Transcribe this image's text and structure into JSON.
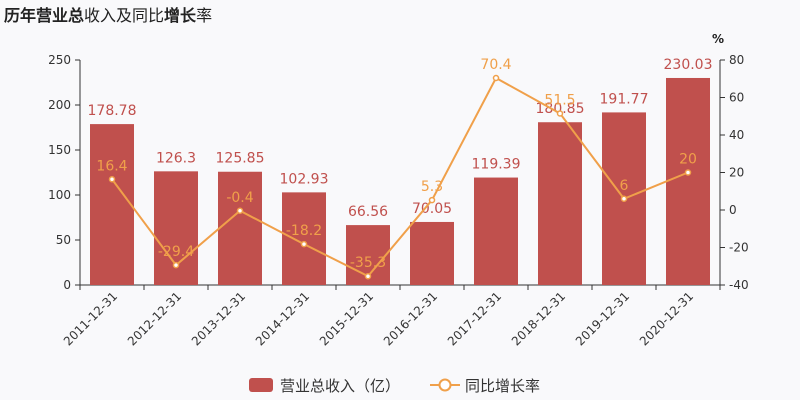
{
  "chart_data": {
    "type": "bar",
    "title_parts": [
      {
        "text": "历年",
        "bold": true
      },
      {
        "text": "营业总",
        "bold": true
      },
      {
        "text": "收入及同比",
        "bold": false
      },
      {
        "text": "增长",
        "bold": true
      },
      {
        "text": "率",
        "bold": false
      }
    ],
    "categories": [
      "2011-12-31",
      "2012-12-31",
      "2013-12-31",
      "2014-12-31",
      "2015-12-31",
      "2016-12-31",
      "2017-12-31",
      "2018-12-31",
      "2019-12-31",
      "2020-12-31"
    ],
    "series": [
      {
        "name": "营业总收入（亿）",
        "type": "bar",
        "axis": "left",
        "color": "#c0504d",
        "values": [
          178.78,
          126.3,
          125.85,
          102.93,
          66.56,
          70.05,
          119.39,
          180.85,
          191.77,
          230.03
        ],
        "labels": [
          "178.78",
          "126.3",
          "125.85",
          "102.93",
          "66.56",
          "70.05",
          "119.39",
          "180.85",
          "191.77",
          "230.03"
        ]
      },
      {
        "name": "同比增长率",
        "type": "line",
        "axis": "right",
        "color": "#f0a04a",
        "values": [
          16.4,
          -29.4,
          -0.4,
          -18.2,
          -35.3,
          5.3,
          70.4,
          51.5,
          6,
          20
        ],
        "labels": [
          "16.4",
          "-29.4",
          "-0.4",
          "-18.2",
          "-35.3",
          "5.3",
          "70.4",
          "51.5",
          "6",
          "20"
        ]
      }
    ],
    "y_left": {
      "min": 0,
      "max": 250,
      "ticks": [
        "0",
        "50",
        "100",
        "150",
        "200",
        "250"
      ]
    },
    "y_right": {
      "min": -40,
      "max": 80,
      "ticks": [
        "-40",
        "-20",
        "0",
        "20",
        "40",
        "60",
        "80"
      ],
      "unit": "%"
    },
    "legend_position": "bottom",
    "grid": false
  }
}
